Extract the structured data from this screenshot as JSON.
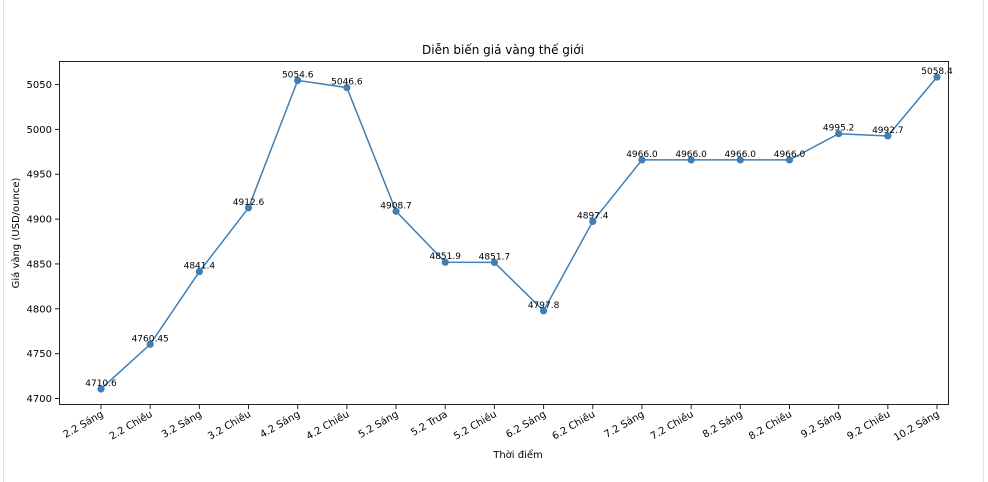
{
  "chart_data": {
    "type": "line",
    "title": "Diễn biến giá vàng thế giới",
    "xlabel": "Thời điểm",
    "ylabel": "Giá vàng (USD/ounce)",
    "categories": [
      "2.2 Sáng",
      "2.2 Chiều",
      "3.2 Sáng",
      "3.2 Chiều",
      "4.2 Sáng",
      "4.2 Chiều",
      "5.2 Sáng",
      "5.2 Trưa",
      "5.2 Chiều",
      "6.2 Sáng",
      "6.2 Chiều",
      "7.2 Sáng",
      "7.2 Chiều",
      "8.2 Sáng",
      "8.2 Chiều",
      "9.2 Sáng",
      "9.2 Chiều",
      "10.2 Sáng"
    ],
    "values": [
      4710.6,
      4760.45,
      4841.4,
      4912.6,
      5054.6,
      5046.6,
      4908.7,
      4851.9,
      4851.7,
      4797.8,
      4897.4,
      4966.0,
      4966.0,
      4966.0,
      4966.0,
      4995.2,
      4992.7,
      5058.4
    ],
    "data_labels": [
      "4710.6",
      "4760.45",
      "4841.4",
      "4912.6",
      "5054.6",
      "5046.6",
      "4908.7",
      "4851.9",
      "4851.7",
      "4797.8",
      "4897.4",
      "4966.0",
      "4966.0",
      "4966.0",
      "4966.0",
      "4995.2",
      "4992.7",
      "5058.4"
    ],
    "yticks": [
      4700,
      4750,
      4800,
      4850,
      4900,
      4950,
      5000,
      5050
    ],
    "ylim": [
      4693.3,
      5075.7
    ],
    "grid": false,
    "line_color": "#3f7fb5",
    "marker": "circle"
  }
}
